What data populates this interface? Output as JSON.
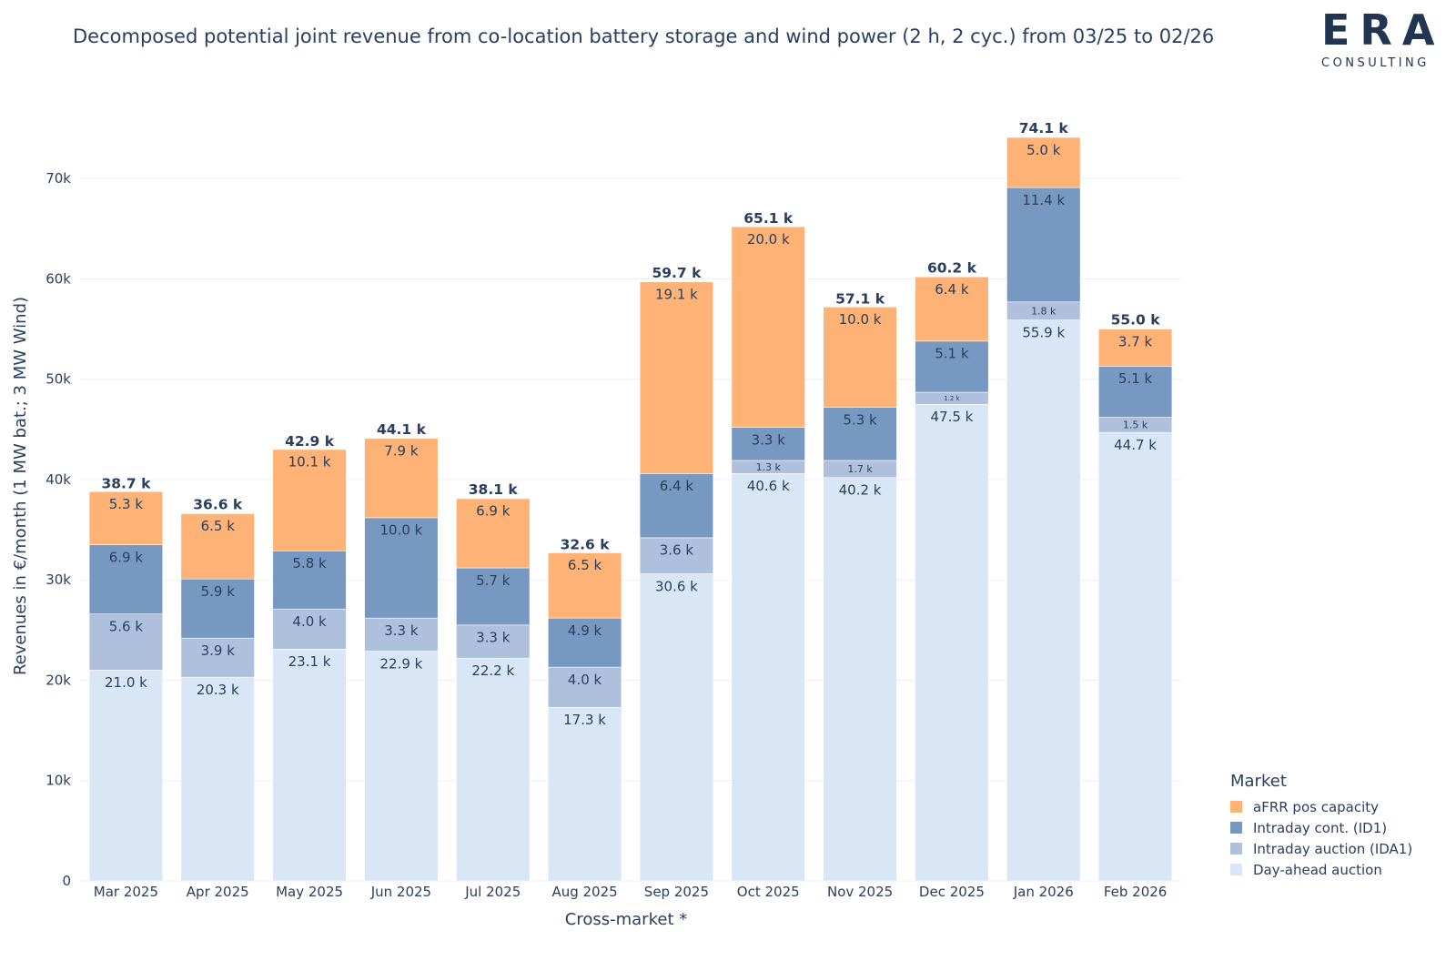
{
  "title": "Decomposed potential joint revenue from co-location battery storage and wind power (2 h, 2 cyc.) from 03/25 to 02/26",
  "logo": {
    "word": "ERA",
    "sub": "CONSULTING"
  },
  "chart_data": {
    "type": "bar",
    "stacked": true,
    "title": "Decomposed potential joint revenue from co-location battery storage and wind power (2 h, 2 cyc.) from 03/25 to 02/26",
    "xlabel": "Cross-market *",
    "ylabel": "Revenues in €/month (1 MW bat.; 3 MW Wind)",
    "ylim": [
      0,
      78000
    ],
    "yticks": [
      0,
      10000,
      20000,
      30000,
      40000,
      50000,
      60000,
      70000
    ],
    "ytick_labels": [
      "0",
      "10k",
      "20k",
      "30k",
      "40k",
      "50k",
      "60k",
      "70k"
    ],
    "grid": true,
    "categories": [
      "Mar 2025",
      "Apr 2025",
      "May 2025",
      "Jun 2025",
      "Jul 2025",
      "Aug 2025",
      "Sep 2025",
      "Oct 2025",
      "Nov 2025",
      "Dec 2025",
      "Jan 2026",
      "Feb 2026"
    ],
    "legend_title": "Market",
    "legend_position": "bottom-right",
    "series": [
      {
        "name": "Day-ahead auction",
        "color": "#d9e6f6",
        "values": [
          21000,
          20300,
          23100,
          22900,
          22200,
          17300,
          30600,
          40600,
          40200,
          47500,
          55900,
          44700
        ],
        "labels": [
          "21.0 k",
          "20.3 k",
          "23.1 k",
          "22.9 k",
          "22.2 k",
          "17.3 k",
          "30.6 k",
          "40.6 k",
          "40.2 k",
          "47.5 k",
          "55.9 k",
          "44.7 k"
        ]
      },
      {
        "name": "Intraday auction (IDA1)",
        "color": "#afc0dc",
        "values": [
          5600,
          3900,
          4000,
          3300,
          3300,
          4000,
          3600,
          1300,
          1700,
          1200,
          1800,
          1500
        ],
        "labels": [
          "5.6 k",
          "3.9 k",
          "4.0 k",
          "3.3 k",
          "3.3 k",
          "4.0 k",
          "3.6 k",
          "1.3 k",
          "1.7 k",
          "1.2 k",
          "1.8 k",
          "1.5 k"
        ]
      },
      {
        "name": "Intraday cont. (ID1)",
        "color": "#7799c1",
        "values": [
          6900,
          5900,
          5800,
          10000,
          5700,
          4900,
          6400,
          3300,
          5300,
          5100,
          11400,
          5100
        ],
        "labels": [
          "6.9 k",
          "5.9 k",
          "5.8 k",
          "10.0 k",
          "5.7 k",
          "4.9 k",
          "6.4 k",
          "3.3 k",
          "5.3 k",
          "5.1 k",
          "11.4 k",
          "5.1 k"
        ]
      },
      {
        "name": "aFRR pos capacity",
        "color": "#feb275",
        "values": [
          5300,
          6500,
          10100,
          7900,
          6900,
          6500,
          19100,
          20000,
          10000,
          6400,
          5000,
          3700
        ],
        "labels": [
          "5.3 k",
          "6.5 k",
          "10.1 k",
          "7.9 k",
          "6.9 k",
          "6.5 k",
          "19.1 k",
          "20.0 k",
          "10.0 k",
          "6.4 k",
          "5.0 k",
          "3.7 k"
        ]
      }
    ],
    "totals": [
      38700,
      36600,
      42900,
      44100,
      38100,
      32600,
      59700,
      65100,
      57100,
      60200,
      74100,
      55000
    ],
    "total_labels": [
      "38.7 k",
      "36.6 k",
      "42.9 k",
      "44.1 k",
      "38.1 k",
      "32.6 k",
      "59.7 k",
      "65.1 k",
      "57.1 k",
      "60.2 k",
      "74.1 k",
      "55.0 k"
    ],
    "legend_order": [
      "aFRR pos capacity",
      "Intraday cont. (ID1)",
      "Intraday auction (IDA1)",
      "Day-ahead auction"
    ]
  }
}
